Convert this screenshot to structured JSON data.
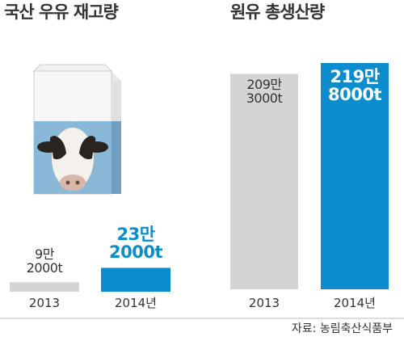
{
  "chart_data": [
    {
      "type": "bar",
      "title": "국산 우유 재고량",
      "categories": [
        "2013",
        "2014년"
      ],
      "values": [
        92000,
        232000
      ],
      "value_labels": [
        "9만\n2000t",
        "23만\n2000t"
      ],
      "colors": [
        "#d4d4d4",
        "#0b8dcd"
      ]
    },
    {
      "type": "bar",
      "title": "원유 총생산량",
      "categories": [
        "2013",
        "2014년"
      ],
      "values": [
        2093000,
        2198000
      ],
      "value_labels": [
        "209만\n3000t",
        "219만\n8000t"
      ],
      "colors": [
        "#d4d4d4",
        "#0b8dcd"
      ]
    }
  ],
  "source": "자료: 농림축산식품부"
}
